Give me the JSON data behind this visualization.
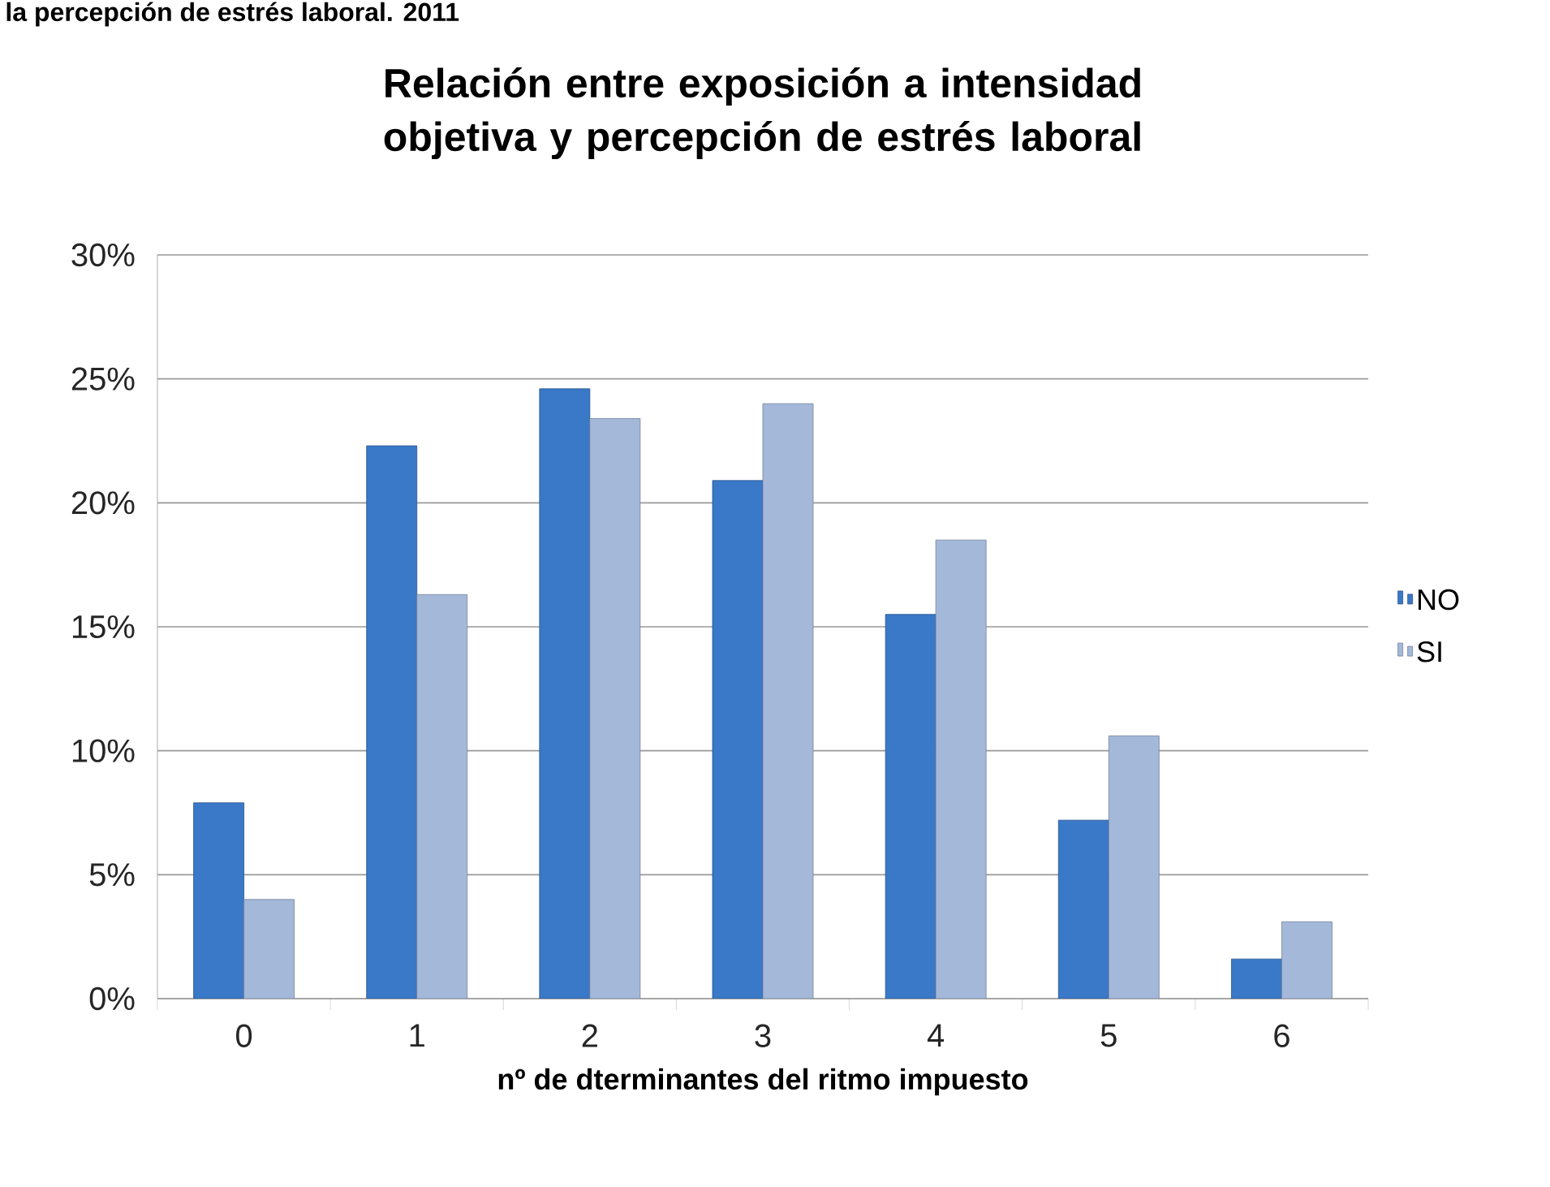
{
  "chart_data": {
    "type": "bar",
    "title": "Relación entre exposición a intensidad objetiva y percepción de estrés laboral",
    "annotations": [
      "la percepción de estrés laboral. 2011"
    ],
    "xlabel": "nº de dterminantes del ritmo impuesto",
    "categories": [
      "0",
      "1",
      "2",
      "3",
      "4",
      "5",
      "6"
    ],
    "series": [
      {
        "name": "NO",
        "color": "#3a78c8",
        "values": [
          7.9,
          22.3,
          24.6,
          20.9,
          15.5,
          7.2,
          1.6
        ]
      },
      {
        "name": "SI",
        "color": "#a4b8da",
        "values": [
          4.0,
          16.3,
          23.4,
          24.0,
          18.5,
          10.6,
          3.1
        ]
      }
    ],
    "ylim": [
      0,
      30
    ],
    "yticks": [
      {
        "value": 0,
        "label": "0%"
      },
      {
        "value": 5,
        "label": "5%"
      },
      {
        "value": 10,
        "label": "10%"
      },
      {
        "value": 15,
        "label": "15%"
      },
      {
        "value": 20,
        "label": "20%"
      },
      {
        "value": 25,
        "label": "25%"
      },
      {
        "value": 30,
        "label": "30%"
      }
    ],
    "grid": "y",
    "legend": "right"
  }
}
